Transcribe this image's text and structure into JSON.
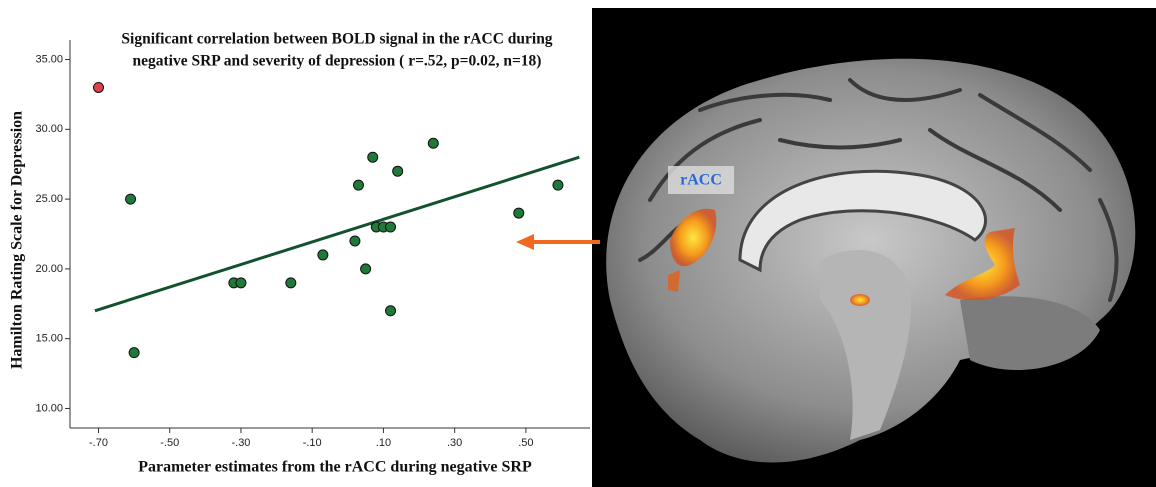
{
  "chart_data": {
    "type": "scatter",
    "title": [
      "Significant correlation between BOLD signal in the rACC during",
      "negative SRP and severity of depression ( r=.52, p=0.02, n=18)"
    ],
    "x_label": "Parameter estimates from the rACC during negative SRP",
    "y_label": "Hamilton Rating Scale for Depression",
    "x": [
      -0.7,
      -0.61,
      -0.6,
      -0.32,
      -0.3,
      -0.16,
      -0.07,
      0.02,
      0.03,
      0.05,
      0.07,
      0.08,
      0.1,
      0.12,
      0.12,
      0.14,
      0.24,
      0.48,
      0.59
    ],
    "values": [
      33,
      25,
      14,
      19,
      19,
      19,
      21,
      22,
      26,
      20,
      28,
      23,
      23,
      23,
      17,
      27,
      29,
      24,
      26
    ],
    "colors": [
      "#e0404a",
      "#1f7a3a",
      "#1f7a3a",
      "#1f7a3a",
      "#1f7a3a",
      "#1f7a3a",
      "#1f7a3a",
      "#1f7a3a",
      "#1f7a3a",
      "#1f7a3a",
      "#1f7a3a",
      "#1f7a3a",
      "#1f7a3a",
      "#1f7a3a",
      "#1f7a3a",
      "#1f7a3a",
      "#1f7a3a",
      "#1f7a3a",
      "#1f7a3a"
    ],
    "fit_line": {
      "x": [
        -0.71,
        0.65
      ],
      "y": [
        17,
        28
      ],
      "color": "#12522c"
    },
    "xlim": [
      -0.78,
      0.68
    ],
    "ylim": [
      8.6,
      36.4
    ],
    "xticks": [
      {
        "value": -0.7,
        "label": "-.70"
      },
      {
        "value": -0.5,
        "label": "-.50"
      },
      {
        "value": -0.3,
        "label": "-.30"
      },
      {
        "value": -0.1,
        "label": "-.10"
      },
      {
        "value": 0.1,
        "label": ".10"
      },
      {
        "value": 0.3,
        "label": ".30"
      },
      {
        "value": 0.5,
        "label": ".50"
      }
    ],
    "yticks": [
      {
        "value": 10,
        "label": "10.00"
      },
      {
        "value": 15,
        "label": "15.00"
      },
      {
        "value": 20,
        "label": "20.00"
      },
      {
        "value": 25,
        "label": "25.00"
      },
      {
        "value": 30,
        "label": "30.00"
      },
      {
        "value": 35,
        "label": "35.00"
      }
    ],
    "grid": false
  },
  "image": {
    "label": "rACC"
  }
}
